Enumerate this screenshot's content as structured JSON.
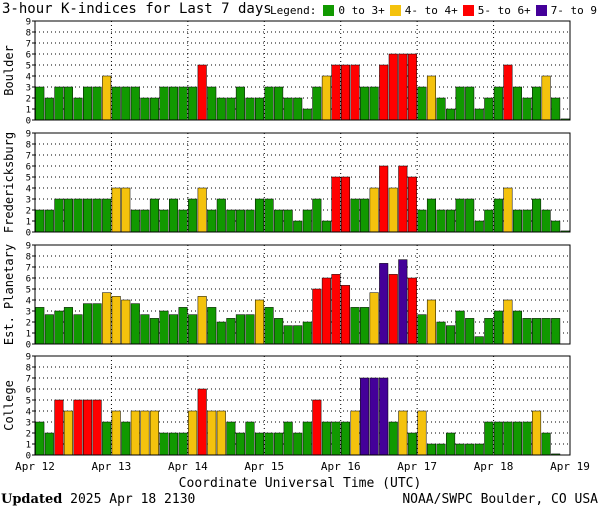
{
  "title": "3-hour K-indices for Last 7 days",
  "legend": {
    "label": "Legend:",
    "items": [
      {
        "label": "0 to 3+",
        "color": "#119900"
      },
      {
        "label": "4- to 4+",
        "color": "#f4c20d"
      },
      {
        "label": "5- to 6+",
        "color": "#ff0000"
      },
      {
        "label": "7- to 9",
        "color": "#440099"
      }
    ]
  },
  "footer": {
    "updated_label": "Updated",
    "updated_value": "2025 Apr 18 2130",
    "credit": "NOAA/SWPC Boulder, CO USA"
  },
  "chart_data": {
    "type": "bar",
    "xlabel": "Coordinate Universal Time (UTC)",
    "x_ticks": [
      "Apr 12",
      "Apr 13",
      "Apr 14",
      "Apr 15",
      "Apr 16",
      "Apr 17",
      "Apr 18",
      "Apr 19"
    ],
    "ylim": [
      0,
      9
    ],
    "y_ticks": [
      "0",
      "1",
      "2",
      "3",
      "4",
      "5",
      "6",
      "7",
      "8",
      "9"
    ],
    "color_thresholds": [
      {
        "max": 4,
        "color": "#119900"
      },
      {
        "max": 5,
        "color": "#f4c20d"
      },
      {
        "max": 7,
        "color": "#ff0000"
      },
      {
        "max": 10,
        "color": "#440099"
      }
    ],
    "panels": [
      {
        "name": "Boulder",
        "values": [
          3,
          2,
          3,
          3,
          2,
          3,
          3,
          4,
          3,
          3,
          3,
          2,
          2,
          3,
          3,
          3,
          3,
          5,
          3,
          2,
          2,
          3,
          2,
          2,
          3,
          3,
          2,
          2,
          1,
          3,
          4,
          5,
          5,
          5,
          3,
          3,
          5,
          6,
          6,
          6,
          3,
          4,
          2,
          1,
          3,
          3,
          1,
          2,
          3,
          5,
          3,
          2,
          3,
          4,
          2,
          0.1
        ]
      },
      {
        "name": "Fredericksburg",
        "values": [
          2,
          2,
          3,
          3,
          3,
          3,
          3,
          3,
          4,
          4,
          2,
          2,
          3,
          2,
          3,
          2,
          3,
          4,
          2,
          3,
          2,
          2,
          2,
          3,
          3,
          2,
          2,
          1,
          2,
          3,
          1,
          5,
          5,
          3,
          3,
          4,
          6,
          4,
          6,
          5,
          2,
          3,
          2,
          2,
          3,
          3,
          1,
          2,
          3,
          4,
          2,
          2,
          3,
          2,
          1,
          0.1
        ]
      },
      {
        "name": "Est. Planetary",
        "values": [
          3.33,
          2.67,
          3,
          3.33,
          2.67,
          3.67,
          3.67,
          4.67,
          4.33,
          4,
          3.67,
          2.67,
          2.33,
          3,
          2.67,
          3.33,
          2.67,
          4.33,
          3.33,
          2,
          2.33,
          2.67,
          2.67,
          4,
          3.33,
          2.33,
          1.67,
          1.67,
          2,
          5,
          6,
          6.33,
          5.33,
          3.33,
          3.33,
          4.67,
          7.33,
          6.33,
          7.67,
          6,
          2.67,
          4,
          2,
          1.67,
          3,
          2.33,
          0.67,
          2.33,
          3,
          4,
          3,
          2.33,
          2.33,
          2.33,
          2.33
        ]
      },
      {
        "name": "College",
        "values": [
          3,
          2,
          5,
          4,
          5,
          5,
          5,
          3,
          4,
          3,
          4,
          4,
          4,
          2,
          2,
          2,
          4,
          6,
          4,
          4,
          3,
          2,
          3,
          2,
          2,
          2,
          3,
          2,
          3,
          5,
          3,
          3,
          3,
          4,
          7,
          7,
          7,
          3,
          4,
          2,
          4,
          1,
          1,
          2,
          1,
          1,
          1,
          3,
          3,
          3,
          3,
          3,
          4,
          2,
          0.1
        ]
      }
    ]
  }
}
